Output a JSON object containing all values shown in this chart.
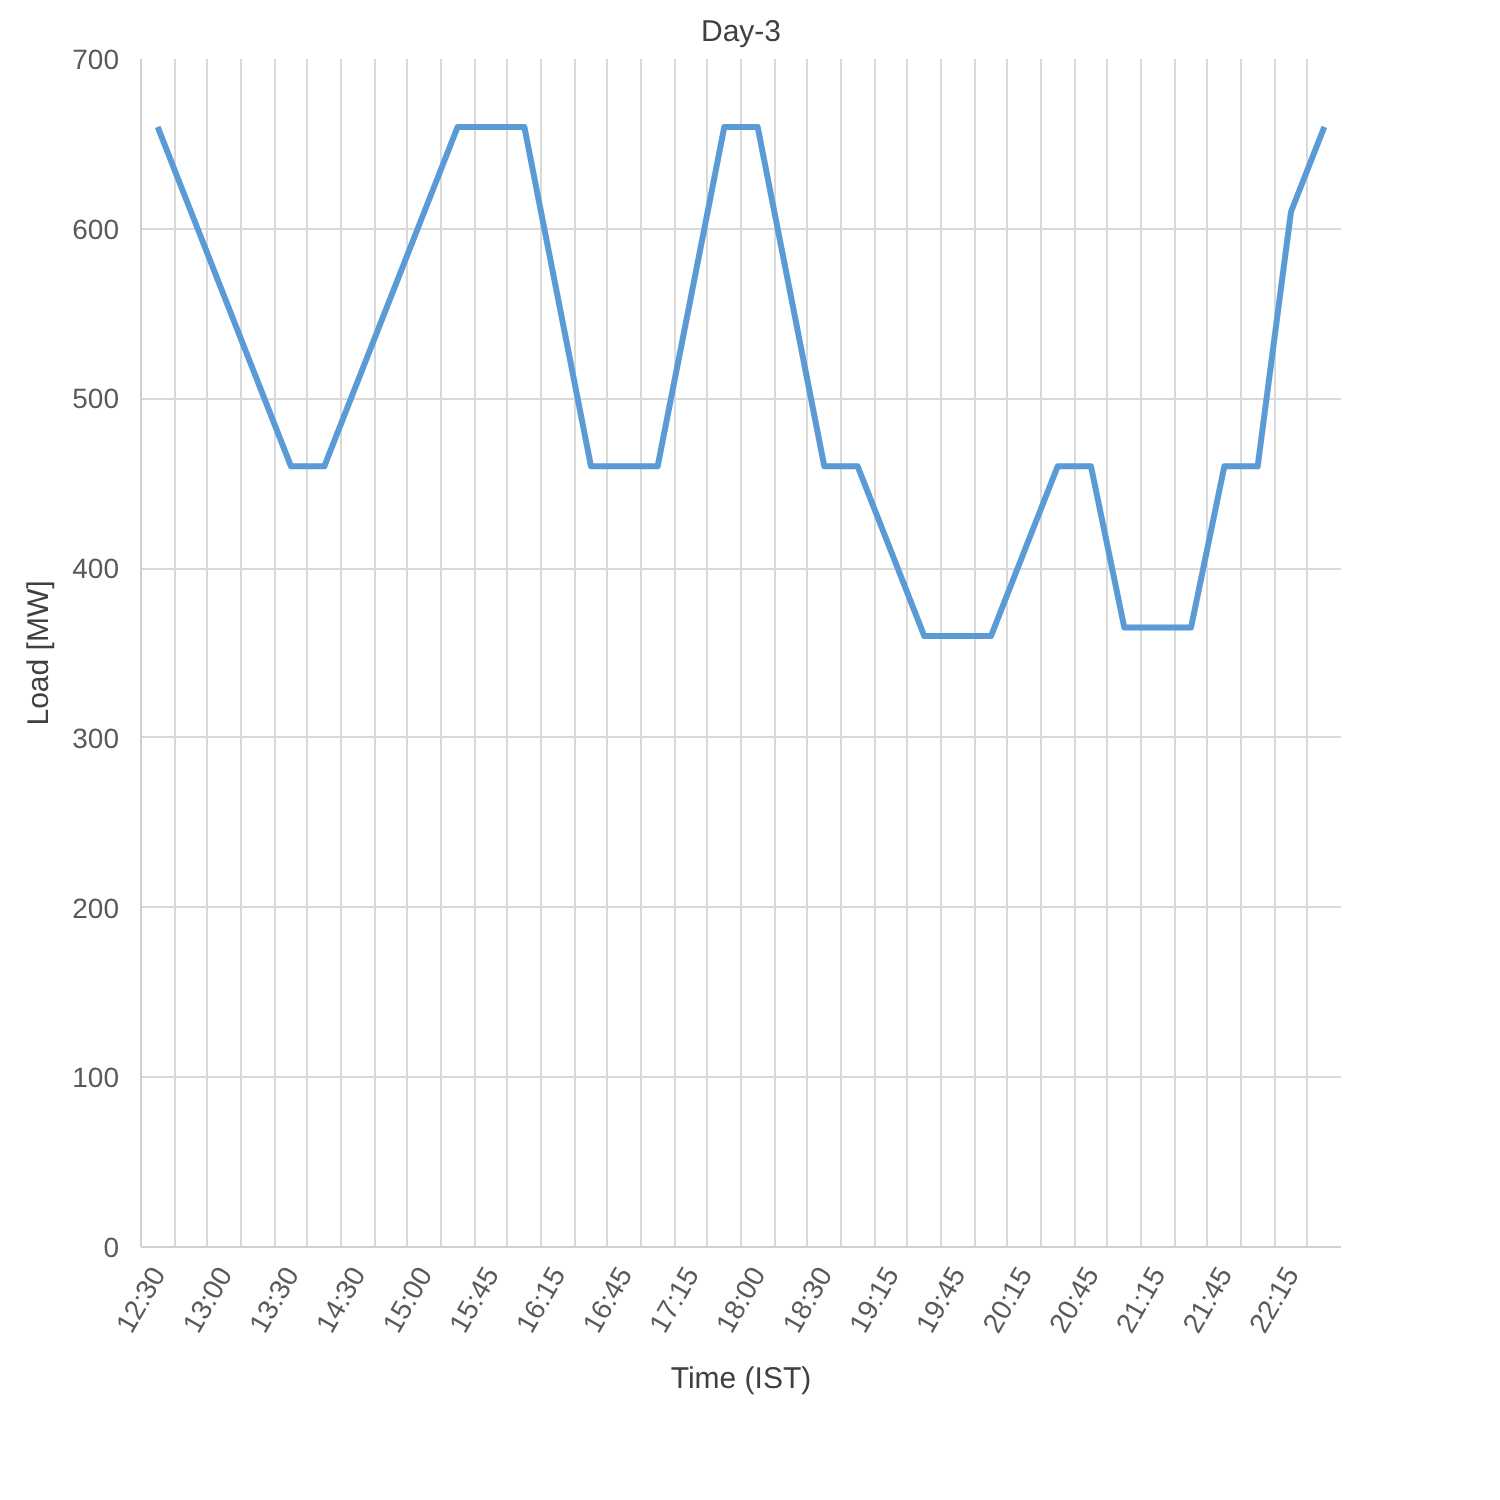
{
  "chart_data": {
    "type": "line",
    "title": "Day-3",
    "xlabel": "Time (IST)",
    "ylabel": "Load [MW]",
    "categories": [
      "12:30",
      null,
      "13:00",
      null,
      "13:30",
      null,
      "14:30",
      null,
      "15:00",
      null,
      "15:45",
      null,
      "16:15",
      null,
      "16:45",
      null,
      "17:15",
      null,
      "18:00",
      null,
      "18:30",
      null,
      "19:15",
      null,
      "19:45",
      null,
      "20:15",
      null,
      "20:45",
      null,
      "21:15",
      null,
      "21:45",
      null,
      "22:15",
      null
    ],
    "series": [
      {
        "color": "#5b9bd5",
        "values": [
          660,
          610,
          560,
          510,
          460,
          460,
          510,
          560,
          610,
          660,
          660,
          660,
          560,
          460,
          460,
          460,
          560,
          660,
          660,
          560,
          460,
          460,
          410,
          360,
          360,
          360,
          410,
          460,
          460,
          365,
          365,
          365,
          460,
          460,
          610,
          660
        ]
      }
    ],
    "ylim": [
      0,
      700
    ],
    "yticks": [
      0,
      100,
      200,
      300,
      400,
      500,
      600,
      700
    ],
    "grid": true,
    "marker": "none",
    "line_style": "solid"
  }
}
